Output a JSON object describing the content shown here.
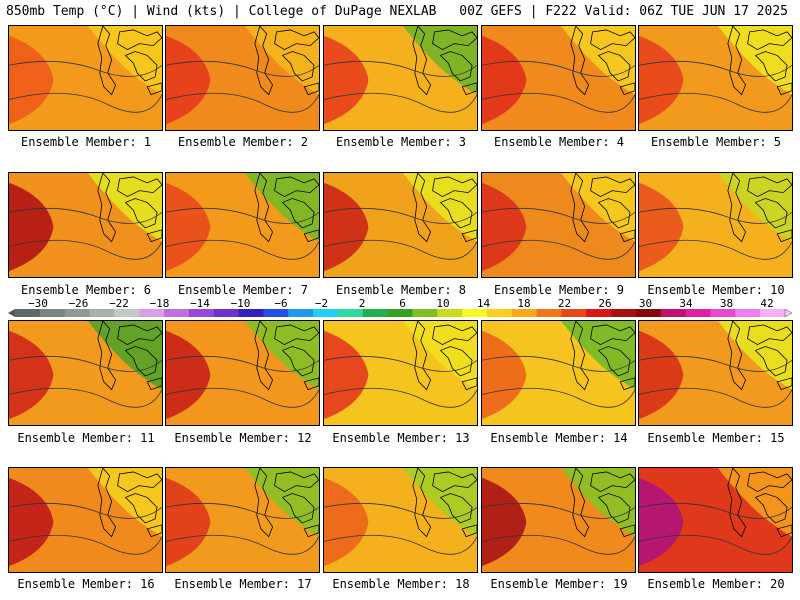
{
  "header": {
    "left": "850mb Temp (°C) | Wind (kts) | College of DuPage NEXLAB",
    "right": "00Z GEFS | F222 Valid: 06Z TUE JUN 17 2025"
  },
  "panel_label_prefix": "Ensemble Member: ",
  "members": [
    {
      "label": "Ensemble Member: 1",
      "fill": "#f39a1c",
      "warm": "#ee5a1a",
      "cool": "#f7c81e"
    },
    {
      "label": "Ensemble Member: 2",
      "fill": "#f08a1d",
      "warm": "#e43a1c",
      "cool": "#f3b41e"
    },
    {
      "label": "Ensemble Member: 3",
      "fill": "#f5b01e",
      "warm": "#e8401c",
      "cool": "#78b428"
    },
    {
      "label": "Ensemble Member: 4",
      "fill": "#f08a1d",
      "warm": "#e0301b",
      "cool": "#f6cb20"
    },
    {
      "label": "Ensemble Member: 5",
      "fill": "#f29a1d",
      "warm": "#e6441b",
      "cool": "#f0e020"
    },
    {
      "label": "Ensemble Member: 6",
      "fill": "#f0901d",
      "warm": "#b01515",
      "cool": "#e6e220"
    },
    {
      "label": "Ensemble Member: 7",
      "fill": "#f39a1d",
      "warm": "#e84a1c",
      "cool": "#7ab828"
    },
    {
      "label": "Ensemble Member: 8",
      "fill": "#f0a21d",
      "warm": "#cc2618",
      "cool": "#e8e020"
    },
    {
      "label": "Ensemble Member: 9",
      "fill": "#ee8a1d",
      "warm": "#d8301a",
      "cool": "#f6cb20"
    },
    {
      "label": "Ensemble Member: 10",
      "fill": "#f5b01e",
      "warm": "#ea521b",
      "cool": "#c8d624"
    },
    {
      "label": "Ensemble Member: 11",
      "fill": "#f29a1d",
      "warm": "#d0281a",
      "cool": "#5aa228"
    },
    {
      "label": "Ensemble Member: 12",
      "fill": "#f2961d",
      "warm": "#c82018",
      "cool": "#88be26"
    },
    {
      "label": "Ensemble Member: 13",
      "fill": "#f6c41e",
      "warm": "#e43a1c",
      "cool": "#f0e020"
    },
    {
      "label": "Ensemble Member: 14",
      "fill": "#f6c41e",
      "warm": "#ec641b",
      "cool": "#7ab828"
    },
    {
      "label": "Ensemble Member: 15",
      "fill": "#f29a1d",
      "warm": "#d8301a",
      "cool": "#e8e020"
    },
    {
      "label": "Ensemble Member: 16",
      "fill": "#f08a1d",
      "warm": "#c01818",
      "cool": "#f6cb20"
    },
    {
      "label": "Ensemble Member: 17",
      "fill": "#f29a1d",
      "warm": "#e0381b",
      "cool": "#8cc026"
    },
    {
      "label": "Ensemble Member: 18",
      "fill": "#f5b01e",
      "warm": "#ec641b",
      "cool": "#a8cc26"
    },
    {
      "label": "Ensemble Member: 19",
      "fill": "#f08a1d",
      "warm": "#a81414",
      "cool": "#8cc026"
    },
    {
      "label": "Ensemble Member: 20",
      "fill": "#e0381b",
      "warm": "#b0147a",
      "cool": "#f39a1d"
    }
  ],
  "colorbar": {
    "ticks": [
      "−30",
      "−26",
      "−22",
      "−18",
      "−14",
      "−10",
      "−6",
      "−2",
      "2",
      "6",
      "10",
      "14",
      "18",
      "22",
      "26",
      "30",
      "34",
      "38",
      "42"
    ],
    "colors": [
      "#606868",
      "#7a8282",
      "#909898",
      "#a8b0b0",
      "#c0c8c8",
      "#d8a0e8",
      "#c070e0",
      "#9848d8",
      "#7030d0",
      "#3020c0",
      "#2050e8",
      "#2098f0",
      "#20d0f0",
      "#30d8a0",
      "#20b050",
      "#38a020",
      "#80c020",
      "#c8dc20",
      "#f8f820",
      "#f8d020",
      "#f8a818",
      "#f07818",
      "#e84818",
      "#d81818",
      "#a81010",
      "#880808",
      "#c01070",
      "#e020a0",
      "#e848d0",
      "#f080f0",
      "#f8b0f8"
    ]
  }
}
